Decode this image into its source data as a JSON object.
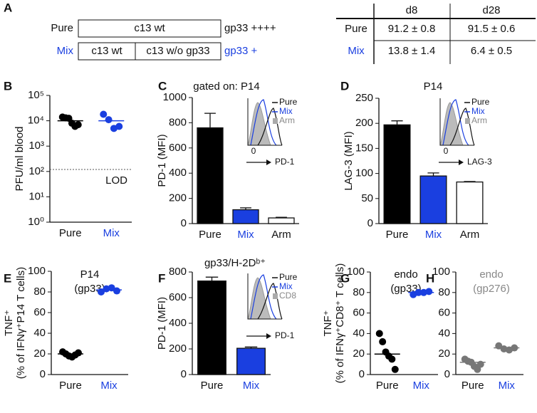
{
  "panel_a": {
    "label": "A",
    "diagram": {
      "pure": {
        "name": "Pure",
        "boxes": [
          "c13 wt"
        ],
        "result": "gp33 ++++"
      },
      "mix": {
        "name": "Mix",
        "boxes": [
          "c13 wt",
          "c13 w/o gp33"
        ],
        "result": "gp33 +"
      }
    },
    "table": {
      "header": [
        "d8",
        "d28"
      ],
      "rows": [
        [
          "Pure",
          "91.2 ± 0.8",
          "91.5 ± 0.6"
        ],
        [
          "Mix",
          "13.8 ± 1.4",
          "6.4 ± 0.5"
        ]
      ]
    }
  },
  "chart_data": [
    {
      "type": "scatter",
      "panel": "B",
      "y_label": [
        "PFU/ml blood"
      ],
      "yscale": "log",
      "categories": [
        "Pure",
        "Mix"
      ],
      "category_colors": [
        "#111111",
        "#1a3fe0"
      ],
      "colors": [
        "#000000",
        "#1a3fe0"
      ],
      "values": [
        [
          14000,
          13000,
          12500,
          8000,
          6000,
          7000
        ],
        [
          18000,
          11000,
          5000,
          6000
        ]
      ],
      "means": [
        10000,
        10000
      ],
      "reference_line": {
        "value": 120,
        "label": "LOD"
      },
      "ylim": [
        1,
        100000
      ],
      "yticks": [
        {
          "value": 1,
          "label": "10⁰"
        },
        {
          "value": 10,
          "label": "10¹"
        },
        {
          "value": 100,
          "label": "10²"
        },
        {
          "value": 1000,
          "label": "10³"
        },
        {
          "value": 10000,
          "label": "10⁴"
        },
        {
          "value": 100000,
          "label": "10⁵"
        }
      ]
    },
    {
      "type": "bar",
      "panel": "C",
      "title": [
        "gated on: P14"
      ],
      "y_label": [
        "PD-1 (MFI)"
      ],
      "categories": [
        "Pure",
        "Mix",
        "Arm"
      ],
      "category_colors": [
        "#111111",
        "#1a3fe0",
        "#111111"
      ],
      "colors": [
        "#000000",
        "#1a3fe0",
        "#ffffff"
      ],
      "values": [
        760,
        110,
        45
      ],
      "errors": [
        115,
        15,
        5
      ],
      "ylim": [
        0,
        1000
      ],
      "yticks": [
        0,
        200,
        400,
        600,
        800,
        1000
      ],
      "inset": {
        "legend": [
          "Pure",
          "Mix",
          "Arm"
        ],
        "zero": "0",
        "marker": "PD-1"
      }
    },
    {
      "type": "bar",
      "panel": "D",
      "title": [
        "P14"
      ],
      "y_label": [
        "LAG-3 (MFI)"
      ],
      "categories": [
        "Pure",
        "Mix",
        "Arm"
      ],
      "category_colors": [
        "#111111",
        "#1a3fe0",
        "#111111"
      ],
      "colors": [
        "#000000",
        "#1a3fe0",
        "#ffffff"
      ],
      "values": [
        197,
        95,
        83
      ],
      "errors": [
        8,
        6,
        1
      ],
      "ylim": [
        0,
        250
      ],
      "yticks": [
        0,
        50,
        100,
        150,
        200,
        250
      ],
      "inset": {
        "legend": [
          "Pure",
          "Mix",
          "Arm"
        ],
        "zero": "0",
        "marker": "LAG-3"
      }
    },
    {
      "type": "scatter",
      "panel": "E",
      "title": [
        "P14",
        "(gp33)"
      ],
      "y_label": [
        "TNF⁺",
        "(% of IFNγ⁺P14 T cells)"
      ],
      "categories": [
        "Pure",
        "Mix"
      ],
      "category_colors": [
        "#111111",
        "#1a3fe0"
      ],
      "colors": [
        "#000000",
        "#1a3fe0"
      ],
      "values": [
        [
          22,
          20,
          18,
          17,
          19,
          21
        ],
        [
          80,
          83,
          84,
          81
        ]
      ],
      "means": [
        20,
        82
      ],
      "ylim": [
        0,
        100
      ],
      "yticks": [
        0,
        20,
        40,
        60,
        80,
        100
      ]
    },
    {
      "type": "bar",
      "panel": "F",
      "title": [
        "gp33/H-2Dᵇ⁺"
      ],
      "y_label": [
        "PD-1 (MFI)"
      ],
      "categories": [
        "Pure",
        "Mix"
      ],
      "category_colors": [
        "#111111",
        "#1a3fe0"
      ],
      "colors": [
        "#000000",
        "#1a3fe0"
      ],
      "values": [
        730,
        205
      ],
      "errors": [
        30,
        10
      ],
      "ylim": [
        0,
        800
      ],
      "yticks": [
        0,
        200,
        400,
        600,
        800
      ],
      "inset": {
        "legend": [
          "Pure",
          "Mix",
          "CD8"
        ],
        "marker": "PD-1"
      }
    },
    {
      "type": "scatter",
      "panel": "G",
      "title": [
        "endo",
        "(gp33)"
      ],
      "y_label": [
        "TNF⁺",
        "(% of IFNγ⁺CD8⁺ T cells)"
      ],
      "categories": [
        "Pure",
        "Mix"
      ],
      "category_colors": [
        "#111111",
        "#1a3fe0"
      ],
      "colors": [
        "#000000",
        "#1a3fe0"
      ],
      "values": [
        [
          40,
          32,
          22,
          18,
          15,
          5
        ],
        [
          78,
          80,
          80,
          81
        ]
      ],
      "means": [
        20,
        80
      ],
      "ylim": [
        0,
        100
      ],
      "yticks": [
        0,
        20,
        40,
        60,
        80,
        100
      ]
    },
    {
      "type": "scatter",
      "panel": "H",
      "title": [
        "endo",
        "(gp276)"
      ],
      "title_color": "#888888",
      "categories": [
        "Pure",
        "Mix"
      ],
      "category_colors": [
        "#111111",
        "#1a3fe0"
      ],
      "colors": [
        "#777777",
        "#777777"
      ],
      "values": [
        [
          15,
          13,
          12,
          8,
          5,
          10
        ],
        [
          28,
          25,
          24,
          26
        ]
      ],
      "means": [
        12,
        26
      ],
      "ylim": [
        0,
        100
      ],
      "yticks": [
        0,
        20,
        40,
        60,
        80,
        100
      ]
    }
  ]
}
